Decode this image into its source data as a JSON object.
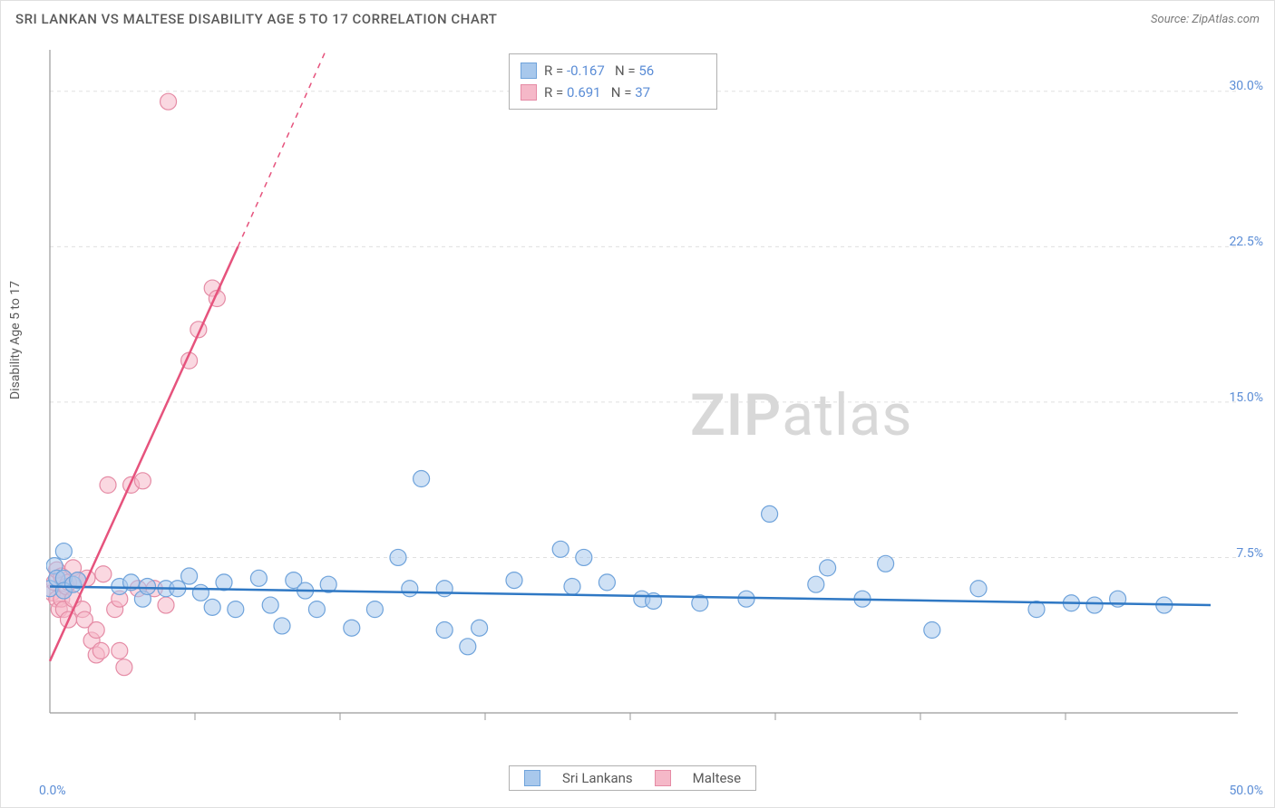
{
  "title": "SRI LANKAN VS MALTESE DISABILITY AGE 5 TO 17 CORRELATION CHART",
  "source": "Source: ZipAtlas.com",
  "ylabel": "Disability Age 5 to 17",
  "watermark_bold": "ZIP",
  "watermark_light": "atlas",
  "chart": {
    "type": "scatter",
    "xlim": [
      0,
      50
    ],
    "ylim": [
      0,
      32
    ],
    "xticks": [
      0,
      50
    ],
    "xtick_labels": [
      "0.0%",
      "50.0%"
    ],
    "yticks": [
      7.5,
      15.0,
      22.5,
      30.0
    ],
    "ytick_labels": [
      "7.5%",
      "15.0%",
      "22.5%",
      "30.0%"
    ],
    "xtick_minor_step": 6.25,
    "grid_color": "#e0e0e0",
    "axis_color": "#9a9a9a",
    "background_color": "#ffffff",
    "series": {
      "sri_lankans": {
        "label": "Sri Lankans",
        "color_fill": "#a8c8ec",
        "color_stroke": "#6fa3db",
        "fill_opacity": 0.55,
        "marker_radius": 9,
        "trend": {
          "x1": 0,
          "y1": 6.1,
          "x2": 50,
          "y2": 5.2,
          "color": "#2f78c4",
          "width": 2.5
        },
        "points": [
          [
            0.0,
            6.0
          ],
          [
            0.2,
            7.1
          ],
          [
            0.3,
            6.5
          ],
          [
            0.6,
            6.5
          ],
          [
            0.6,
            5.9
          ],
          [
            0.6,
            7.8
          ],
          [
            1.0,
            6.2
          ],
          [
            1.2,
            6.4
          ],
          [
            3.0,
            6.1
          ],
          [
            3.5,
            6.3
          ],
          [
            4.0,
            5.5
          ],
          [
            4.2,
            6.1
          ],
          [
            5.0,
            6.0
          ],
          [
            5.5,
            6.0
          ],
          [
            6.0,
            6.6
          ],
          [
            6.5,
            5.8
          ],
          [
            7.0,
            5.1
          ],
          [
            7.5,
            6.3
          ],
          [
            8.0,
            5.0
          ],
          [
            9.0,
            6.5
          ],
          [
            9.5,
            5.2
          ],
          [
            10.0,
            4.2
          ],
          [
            10.5,
            6.4
          ],
          [
            11.0,
            5.9
          ],
          [
            11.5,
            5.0
          ],
          [
            12.0,
            6.2
          ],
          [
            13.0,
            4.1
          ],
          [
            14.0,
            5.0
          ],
          [
            15.0,
            7.5
          ],
          [
            15.5,
            6.0
          ],
          [
            16.0,
            11.3
          ],
          [
            17.0,
            4.0
          ],
          [
            17.0,
            6.0
          ],
          [
            18.0,
            3.2
          ],
          [
            18.5,
            4.1
          ],
          [
            20.0,
            6.4
          ],
          [
            22.0,
            7.9
          ],
          [
            22.5,
            6.1
          ],
          [
            23.0,
            7.5
          ],
          [
            24.0,
            6.3
          ],
          [
            25.5,
            5.5
          ],
          [
            26.0,
            5.4
          ],
          [
            28.0,
            5.3
          ],
          [
            30.0,
            5.5
          ],
          [
            31.0,
            9.6
          ],
          [
            33.0,
            6.2
          ],
          [
            33.5,
            7.0
          ],
          [
            35.0,
            5.5
          ],
          [
            36.0,
            7.2
          ],
          [
            38.0,
            4.0
          ],
          [
            40.0,
            6.0
          ],
          [
            42.5,
            5.0
          ],
          [
            44.0,
            5.3
          ],
          [
            45.0,
            5.2
          ],
          [
            46.0,
            5.5
          ],
          [
            48.0,
            5.2
          ]
        ]
      },
      "maltese": {
        "label": "Maltese",
        "color_fill": "#f5b8c8",
        "color_stroke": "#e58ba5",
        "fill_opacity": 0.55,
        "marker_radius": 9,
        "trend": {
          "solid": {
            "x1": 0,
            "y1": 2.5,
            "x2": 8.1,
            "y2": 22.5,
            "color": "#e6537d",
            "width": 2.5
          },
          "dashed": {
            "x1": 8.1,
            "y1": 22.5,
            "x2": 11.9,
            "y2": 32.0,
            "color": "#e6537d",
            "width": 1.5,
            "dash": "6,6"
          }
        },
        "points": [
          [
            0.1,
            5.8
          ],
          [
            0.2,
            6.3
          ],
          [
            0.3,
            5.5
          ],
          [
            0.3,
            6.9
          ],
          [
            0.4,
            5.0
          ],
          [
            0.5,
            5.5
          ],
          [
            0.5,
            6.6
          ],
          [
            0.6,
            5.0
          ],
          [
            0.7,
            6.1
          ],
          [
            0.8,
            4.5
          ],
          [
            0.8,
            6.3
          ],
          [
            1.0,
            5.5
          ],
          [
            1.0,
            7.0
          ],
          [
            1.2,
            6.4
          ],
          [
            1.4,
            5.0
          ],
          [
            1.5,
            4.5
          ],
          [
            1.6,
            6.5
          ],
          [
            1.8,
            3.5
          ],
          [
            2.0,
            2.8
          ],
          [
            2.0,
            4.0
          ],
          [
            2.2,
            3.0
          ],
          [
            2.3,
            6.7
          ],
          [
            2.5,
            11.0
          ],
          [
            2.8,
            5.0
          ],
          [
            3.0,
            3.0
          ],
          [
            3.0,
            5.5
          ],
          [
            3.2,
            2.2
          ],
          [
            3.5,
            11.0
          ],
          [
            3.8,
            6.0
          ],
          [
            4.0,
            11.2
          ],
          [
            4.5,
            6.0
          ],
          [
            5.0,
            5.2
          ],
          [
            5.1,
            29.5
          ],
          [
            6.0,
            17.0
          ],
          [
            6.4,
            18.5
          ],
          [
            7.0,
            20.5
          ],
          [
            7.2,
            20.0
          ]
        ]
      }
    }
  },
  "legend_top": {
    "rows": [
      {
        "swatch_fill": "#a8c8ec",
        "swatch_stroke": "#6fa3db",
        "r_label": "R =",
        "r_value": "-0.167",
        "n_label": "N =",
        "n_value": "56"
      },
      {
        "swatch_fill": "#f5b8c8",
        "swatch_stroke": "#e58ba5",
        "r_label": "R =",
        "r_value": "0.691",
        "n_label": "N =",
        "n_value": "37"
      }
    ]
  },
  "legend_bottom": {
    "items": [
      {
        "swatch_fill": "#a8c8ec",
        "swatch_stroke": "#6fa3db",
        "label": "Sri Lankans"
      },
      {
        "swatch_fill": "#f5b8c8",
        "swatch_stroke": "#e58ba5",
        "label": "Maltese"
      }
    ]
  }
}
